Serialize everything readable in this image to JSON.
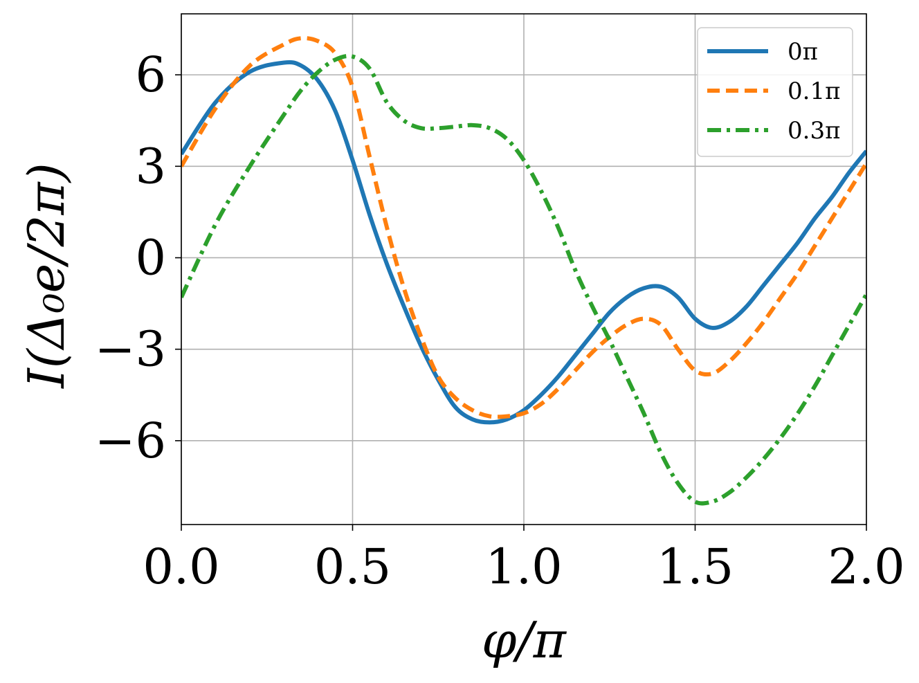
{
  "chart_data": {
    "type": "line",
    "xlabel": "φ/π",
    "ylabel": "I(Δ₀e/2π)",
    "xlim": [
      0.0,
      2.0
    ],
    "ylim": [
      -8.75,
      8.0
    ],
    "xticks": [
      0.0,
      0.5,
      1.0,
      1.5,
      2.0
    ],
    "xtick_labels": [
      "0.0",
      "0.5",
      "1.0",
      "1.5",
      "2.0"
    ],
    "yticks": [
      6,
      3,
      0,
      -3,
      -6
    ],
    "ytick_labels": [
      "6",
      "3",
      "0",
      "−3",
      "−6"
    ],
    "grid": true,
    "legend_position": "top-right",
    "series": [
      {
        "name": "0π",
        "color": "#1f77b4",
        "style": "solid",
        "x": [
          0.0,
          0.1,
          0.2,
          0.3,
          0.35,
          0.4,
          0.45,
          0.5,
          0.55,
          0.6,
          0.65,
          0.7,
          0.75,
          0.8,
          0.85,
          0.9,
          0.95,
          1.0,
          1.05,
          1.1,
          1.15,
          1.2,
          1.25,
          1.3,
          1.35,
          1.4,
          1.45,
          1.5,
          1.55,
          1.6,
          1.65,
          1.7,
          1.75,
          1.8,
          1.85,
          1.9,
          1.95,
          2.0
        ],
        "y": [
          3.4,
          5.1,
          6.1,
          6.4,
          6.3,
          5.8,
          4.8,
          3.2,
          1.4,
          -0.2,
          -1.6,
          -2.9,
          -4.0,
          -4.9,
          -5.3,
          -5.4,
          -5.3,
          -5.0,
          -4.5,
          -3.9,
          -3.2,
          -2.5,
          -1.8,
          -1.3,
          -1.0,
          -0.95,
          -1.3,
          -2.0,
          -2.3,
          -2.1,
          -1.6,
          -0.9,
          -0.2,
          0.5,
          1.3,
          2.0,
          2.8,
          3.5
        ]
      },
      {
        "name": "0.1π",
        "color": "#ff7f0e",
        "style": "dashed",
        "x": [
          0.0,
          0.1,
          0.2,
          0.3,
          0.35,
          0.4,
          0.45,
          0.5,
          0.55,
          0.6,
          0.65,
          0.7,
          0.75,
          0.8,
          0.85,
          0.9,
          0.95,
          1.0,
          1.05,
          1.1,
          1.15,
          1.2,
          1.25,
          1.3,
          1.35,
          1.4,
          1.45,
          1.5,
          1.55,
          1.6,
          1.65,
          1.7,
          1.75,
          1.8,
          1.85,
          1.9,
          1.95,
          2.0
        ],
        "y": [
          3.0,
          4.9,
          6.3,
          7.0,
          7.2,
          7.1,
          6.7,
          5.6,
          3.3,
          1.0,
          -1.0,
          -2.6,
          -3.9,
          -4.6,
          -5.0,
          -5.2,
          -5.2,
          -5.1,
          -4.8,
          -4.3,
          -3.7,
          -3.1,
          -2.6,
          -2.2,
          -2.0,
          -2.2,
          -3.0,
          -3.7,
          -3.8,
          -3.4,
          -2.8,
          -2.1,
          -1.3,
          -0.5,
          0.4,
          1.3,
          2.2,
          3.1
        ]
      },
      {
        "name": "0.3π",
        "color": "#2ca02c",
        "style": "dashdot",
        "x": [
          0.0,
          0.1,
          0.2,
          0.3,
          0.35,
          0.4,
          0.45,
          0.5,
          0.55,
          0.6,
          0.65,
          0.7,
          0.75,
          0.8,
          0.85,
          0.9,
          0.95,
          1.0,
          1.05,
          1.1,
          1.15,
          1.2,
          1.25,
          1.3,
          1.35,
          1.4,
          1.45,
          1.5,
          1.55,
          1.6,
          1.65,
          1.7,
          1.75,
          1.8,
          1.85,
          1.9,
          1.95,
          2.0
        ],
        "y": [
          -1.3,
          1.1,
          3.0,
          4.7,
          5.5,
          6.1,
          6.5,
          6.6,
          6.2,
          5.1,
          4.5,
          4.25,
          4.25,
          4.3,
          4.35,
          4.25,
          3.9,
          3.2,
          2.2,
          1.0,
          -0.4,
          -1.6,
          -2.7,
          -3.9,
          -5.1,
          -6.4,
          -7.4,
          -8.0,
          -8.0,
          -7.7,
          -7.2,
          -6.6,
          -5.9,
          -5.1,
          -4.2,
          -3.2,
          -2.2,
          -1.2
        ]
      }
    ]
  }
}
